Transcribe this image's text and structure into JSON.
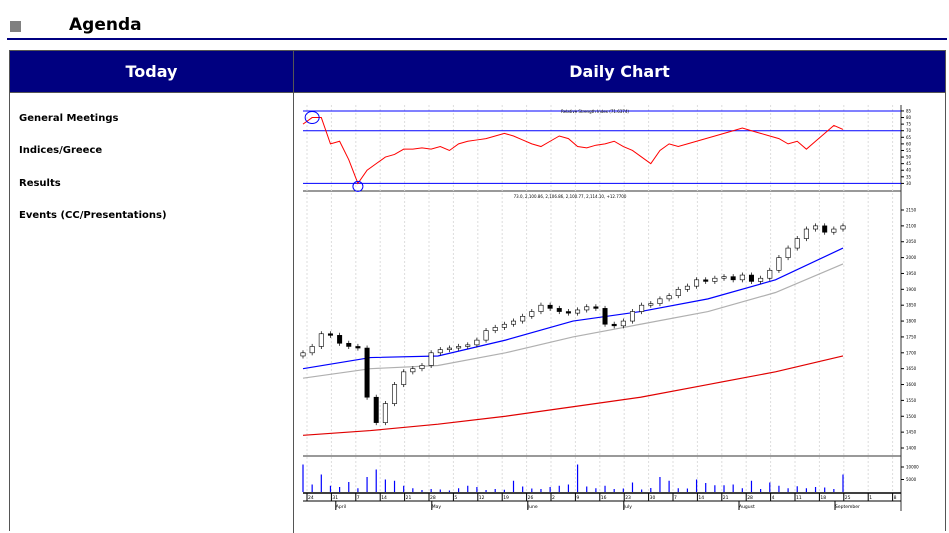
{
  "page": {
    "title": "Agenda"
  },
  "table": {
    "col_today": "Today",
    "col_chart": "Daily Chart",
    "items": [
      {
        "label": "General Meetings"
      },
      {
        "label": "Indices/Greece"
      },
      {
        "label": "Results"
      },
      {
        "label": "Events (CC/Presentations)"
      }
    ]
  },
  "chart_data": {
    "type": "candlestick",
    "rsi_title": "Relative Strength Index (71.6374)",
    "price_legend": "73.0, 2,100.86, 2,106.86, 2,100.77, 2,114.10, +12.7700",
    "closes": [
      1700,
      1720,
      1760,
      1755,
      1730,
      1720,
      1715,
      1560,
      1480,
      1540,
      1600,
      1640,
      1650,
      1660,
      1700,
      1710,
      1715,
      1720,
      1725,
      1740,
      1770,
      1780,
      1790,
      1800,
      1815,
      1830,
      1850,
      1840,
      1830,
      1825,
      1835,
      1845,
      1840,
      1790,
      1785,
      1800,
      1830,
      1850,
      1855,
      1870,
      1880,
      1900,
      1910,
      1930,
      1925,
      1935,
      1940,
      1930,
      1945,
      1925,
      1935,
      1960,
      2000,
      2030,
      2060,
      2090,
      2100,
      2080,
      2090,
      2100
    ],
    "rsi": [
      75,
      80,
      80,
      60,
      62,
      48,
      30,
      40,
      45,
      50,
      52,
      56,
      56,
      57,
      56,
      58,
      55,
      60,
      62,
      63,
      64,
      66,
      68,
      66,
      63,
      60,
      58,
      62,
      66,
      64,
      58,
      57,
      59,
      60,
      62,
      58,
      55,
      50,
      45,
      55,
      60,
      58,
      60,
      62,
      64,
      66,
      68,
      70,
      72,
      70,
      68,
      66,
      64,
      60,
      62,
      56,
      62,
      68,
      74,
      71
    ],
    "volume": [
      11000,
      3000,
      7000,
      2500,
      2000,
      4000,
      1500,
      6000,
      9000,
      5000,
      4500,
      2500,
      1500,
      800,
      1200,
      1000,
      600,
      1500,
      2500,
      2000,
      800,
      1200,
      900,
      4500,
      2200,
      1400,
      1200,
      2000,
      2500,
      3000,
      11000,
      2200,
      1500,
      2500,
      1200,
      1400,
      3800,
      1000,
      1600,
      6000,
      4500,
      1500,
      1400,
      5000,
      3600,
      2700,
      2700,
      3000,
      1500,
      4500,
      1200,
      3800,
      2500,
      1500,
      2300,
      1500,
      2000,
      1800,
      1200,
      7000
    ],
    "ma_fast": [
      1650,
      1685,
      1690,
      1740,
      1800,
      1830,
      1870,
      1930,
      2030
    ],
    "ma_mid": [
      1620,
      1650,
      1660,
      1700,
      1750,
      1790,
      1830,
      1890,
      1980
    ],
    "ma_slow": [
      1440,
      1455,
      1475,
      1500,
      1530,
      1560,
      1600,
      1640,
      1690
    ],
    "rsi_levels": [
      85,
      70,
      30
    ],
    "rsi_ticks": [
      30,
      35,
      40,
      45,
      50,
      55,
      60,
      65,
      70,
      75,
      80,
      85
    ],
    "price_ticks": [
      1400,
      1450,
      1500,
      1550,
      1600,
      1650,
      1700,
      1750,
      1800,
      1850,
      1900,
      1950,
      2000,
      2050,
      2100,
      2150
    ],
    "volume_ticks": [
      5000,
      10000
    ],
    "day_labels": [
      "24",
      "31",
      "7",
      "14",
      "21",
      "28",
      "5",
      "12",
      "19",
      "26",
      "2",
      "9",
      "16",
      "23",
      "30",
      "7",
      "14",
      "21",
      "28",
      "4",
      "11",
      "18",
      "25",
      "1",
      "8"
    ],
    "month_labels": [
      {
        "label": "April",
        "pos": 3
      },
      {
        "label": "May",
        "pos": 13
      },
      {
        "label": "June",
        "pos": 23
      },
      {
        "label": "July",
        "pos": 33
      },
      {
        "label": "August",
        "pos": 45
      },
      {
        "label": "September",
        "pos": 55
      }
    ],
    "colors": {
      "up": "#ffffff",
      "down": "#000000",
      "rsi": "#ff0000",
      "levels": "#0000ff",
      "ma_fast": "#0000ff",
      "ma_mid": "#b0b0b0",
      "ma_slow": "#e00000",
      "volume": "#0000ff"
    }
  }
}
